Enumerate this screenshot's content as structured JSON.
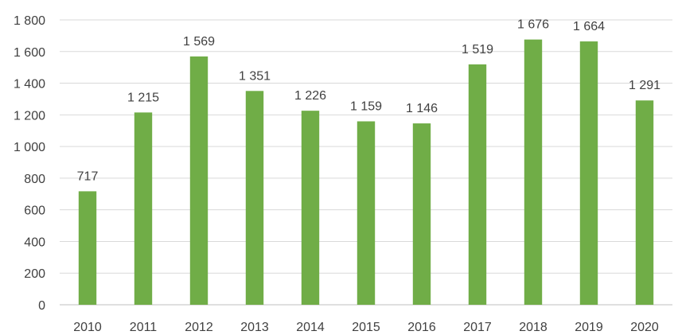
{
  "chart_data": {
    "type": "bar",
    "categories": [
      "2010",
      "2011",
      "2012",
      "2013",
      "2014",
      "2015",
      "2016",
      "2017",
      "2018",
      "2019",
      "2020"
    ],
    "values": [
      717,
      1215,
      1569,
      1351,
      1226,
      1159,
      1146,
      1519,
      1676,
      1664,
      1291
    ],
    "data_labels": [
      "717",
      "1 215",
      "1 569",
      "1 351",
      "1 226",
      "1 159",
      "1 146",
      "1 519",
      "1 676",
      "1 664",
      "1 291"
    ],
    "y_ticks": [
      0,
      200,
      400,
      600,
      800,
      1000,
      1200,
      1400,
      1600,
      1800
    ],
    "y_tick_labels": [
      "0",
      "200",
      "400",
      "600",
      "800",
      "1 000",
      "1 200",
      "1 400",
      "1 600",
      "1 800"
    ],
    "ylim": [
      0,
      1800
    ],
    "title": "",
    "xlabel": "",
    "ylabel": "",
    "grid": true,
    "legend": "none",
    "colors": {
      "bar": "#70AD47",
      "grid": "#D9D9D9",
      "axis": "#BFBFBF",
      "text": "#404040"
    }
  }
}
